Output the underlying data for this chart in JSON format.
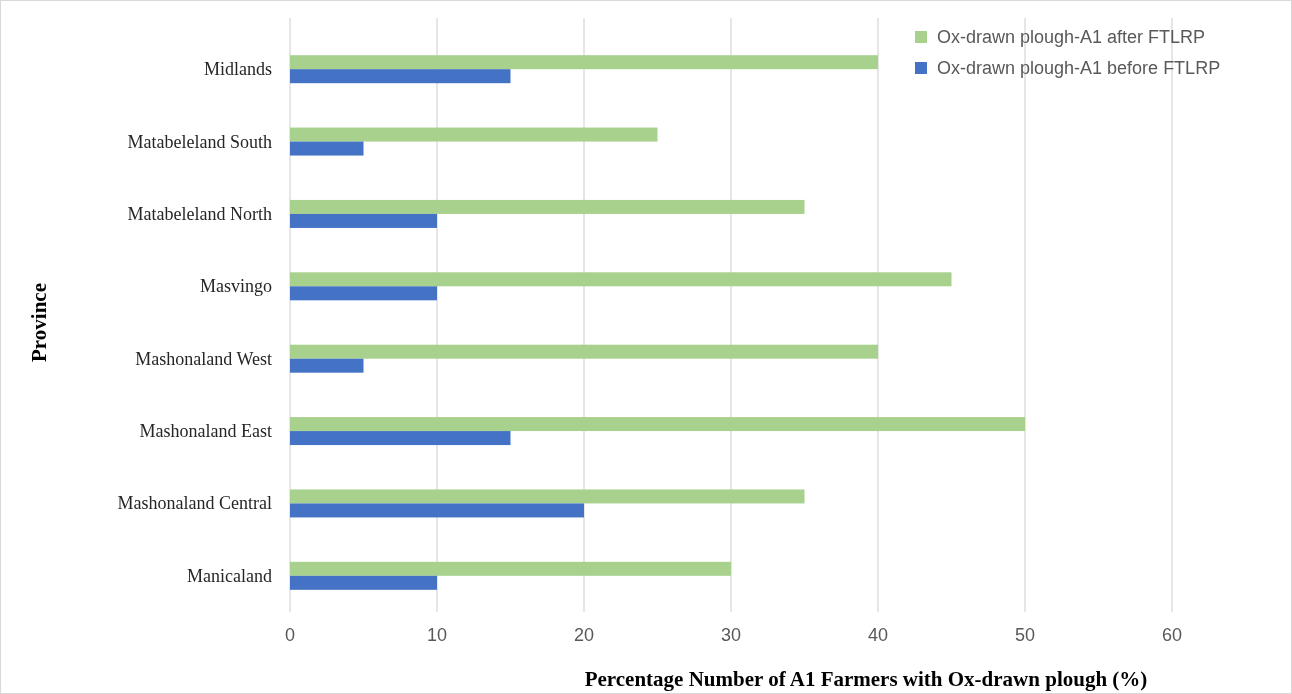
{
  "chart_data": {
    "type": "bar",
    "orientation": "horizontal",
    "xlabel": "Percentage Number of A1 Farmers with Ox-drawn plough (%)",
    "ylabel": "Province",
    "categories": [
      "Midlands",
      "Matabeleland South",
      "Matabeleland North",
      "Masvingo",
      "Mashonaland West",
      "Mashonaland East",
      "Mashonaland Central",
      "Manicaland"
    ],
    "series": [
      {
        "name": "Ox-drawn plough-A1 after FTLRP",
        "color": "#a9d18e",
        "values": [
          40,
          25,
          35,
          45,
          40,
          50,
          35,
          30
        ]
      },
      {
        "name": "Ox-drawn plough-A1 before FTLRP",
        "color": "#4472c4",
        "values": [
          15,
          5,
          10,
          10,
          5,
          15,
          20,
          10
        ]
      }
    ],
    "xlim": [
      0,
      60
    ],
    "xticks": [
      0,
      10,
      20,
      30,
      40,
      50,
      60
    ],
    "grid": "x",
    "legend": "top right"
  }
}
